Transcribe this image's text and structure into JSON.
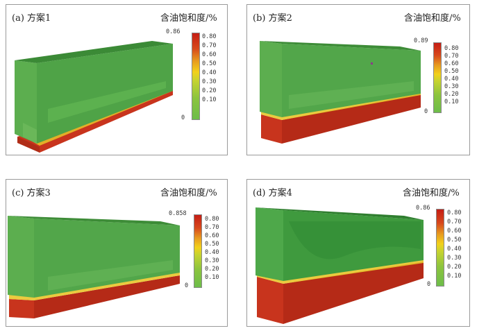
{
  "panels": [
    {
      "id": "a",
      "caption": "(a) 方案1",
      "unit": "含油饱和度/%",
      "max_label": "0.86",
      "min_label": "0",
      "ticks": [
        "0.80",
        "0.70",
        "0.60",
        "0.50",
        "0.40",
        "0.30",
        "0.20",
        "0.10"
      ]
    },
    {
      "id": "b",
      "caption": "(b) 方案2",
      "unit": "含油饱和度/%",
      "max_label": "0.89",
      "min_label": "0",
      "ticks": [
        "0.80",
        "0.70",
        "0.60",
        "0.50",
        "0.40",
        "0.30",
        "0.20",
        "0.10"
      ]
    },
    {
      "id": "c",
      "caption": "(c) 方案3",
      "unit": "含油饱和度/%",
      "max_label": "0.858",
      "min_label": "0",
      "ticks": [
        "0.80",
        "0.70",
        "0.60",
        "0.50",
        "0.40",
        "0.30",
        "0.20",
        "0.10"
      ]
    },
    {
      "id": "d",
      "caption": "(d) 方案4",
      "unit": "含油饱和度/%",
      "max_label": "0.86",
      "min_label": "0",
      "ticks": [
        "0.80",
        "0.70",
        "0.60",
        "0.50",
        "0.40",
        "0.30",
        "0.20",
        "0.10"
      ]
    }
  ],
  "colors": {
    "water_green": "#5cae4f",
    "dark_green": "#3f8f3a",
    "oil_red": "#c8341d",
    "dark_red": "#8f2312",
    "transition_yellow": "#e8c52a"
  }
}
